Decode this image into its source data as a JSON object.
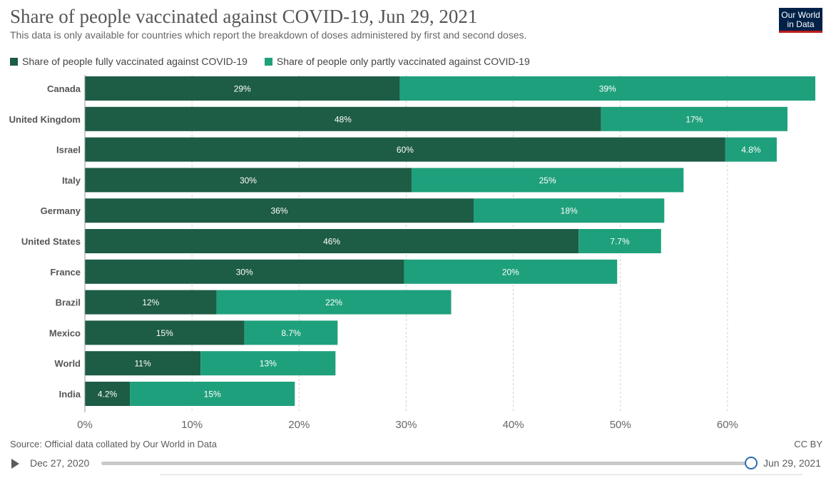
{
  "header": {
    "title": "Share of people vaccinated against COVID-19, Jun 29, 2021",
    "subtitle": "This data is only available for countries which report the breakdown of doses administered by first and second doses.",
    "logo_line1": "Our World",
    "logo_line2": "in Data"
  },
  "legend": [
    {
      "label": "Share of people fully vaccinated against COVID-19",
      "color": "#1d5c45"
    },
    {
      "label": "Share of people only partly vaccinated against COVID-19",
      "color": "#1fa07c"
    }
  ],
  "chart_data": {
    "type": "bar",
    "orientation": "horizontal",
    "stacked": true,
    "categories": [
      "Canada",
      "United Kingdom",
      "Israel",
      "Italy",
      "Germany",
      "United States",
      "France",
      "Brazil",
      "Mexico",
      "World",
      "India"
    ],
    "series": [
      {
        "name": "Share of people fully vaccinated against COVID-19",
        "color": "#1d5c45",
        "values": [
          29.4,
          48.2,
          59.8,
          30.5,
          36.3,
          46.1,
          29.8,
          12.3,
          14.9,
          10.8,
          4.2
        ],
        "labels": [
          "29%",
          "48%",
          "60%",
          "30%",
          "36%",
          "46%",
          "30%",
          "12%",
          "15%",
          "11%",
          "4.2%"
        ]
      },
      {
        "name": "Share of people only partly vaccinated against COVID-19",
        "color": "#1fa07c",
        "values": [
          38.8,
          17.4,
          4.8,
          25.4,
          17.8,
          7.7,
          19.9,
          21.9,
          8.7,
          12.6,
          15.4
        ],
        "labels": [
          "39%",
          "17%",
          "4.8%",
          "25%",
          "18%",
          "7.7%",
          "20%",
          "22%",
          "8.7%",
          "13%",
          "15%"
        ]
      }
    ],
    "xlim": [
      0,
      68.2
    ],
    "xticks": [
      0,
      10,
      20,
      30,
      40,
      50,
      60
    ],
    "xtick_labels": [
      "0%",
      "10%",
      "20%",
      "30%",
      "40%",
      "50%",
      "60%"
    ],
    "grid": true,
    "legend_position": "top-left"
  },
  "footer": {
    "source": "Source: Official data collated by Our World in Data",
    "license": "CC BY"
  },
  "timeline": {
    "start": "Dec 27, 2020",
    "end": "Jun 29, 2021",
    "position": 1.0
  }
}
